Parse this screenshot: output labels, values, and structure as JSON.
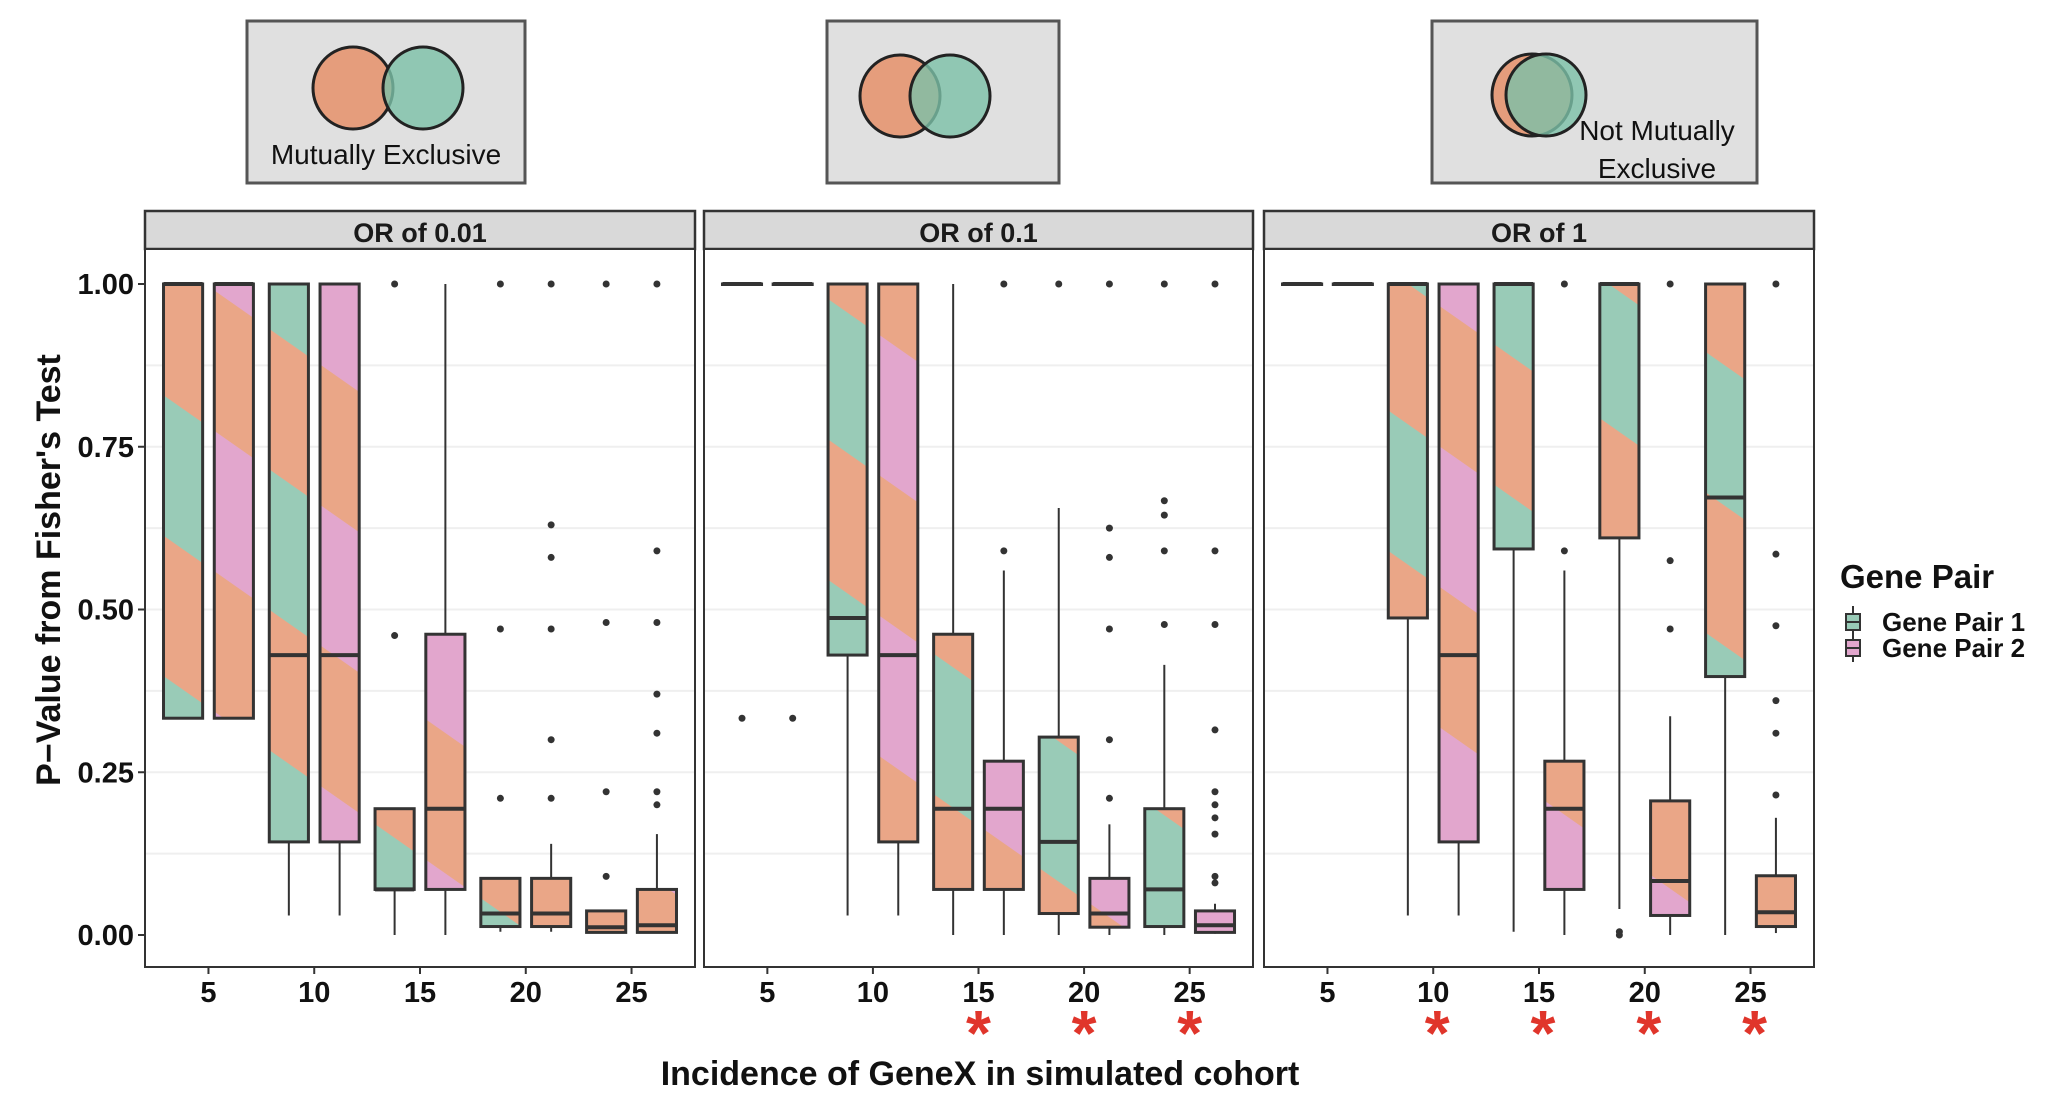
{
  "insets": [
    {
      "lines": [
        "Mutually Exclusive"
      ],
      "overlap": "none"
    },
    {
      "lines": [],
      "overlap": "partial"
    },
    {
      "lines": [
        "Not Mutually",
        "Exclusive"
      ],
      "overlap": "nearly-full"
    }
  ],
  "chart_data": {
    "type": "boxplot",
    "ylabel": "P−Value from Fisher's Test",
    "xlabel": "Incidence of GeneX in simulated cohort",
    "categories": [
      "5",
      "10",
      "15",
      "20",
      "25"
    ],
    "ylim": [
      0,
      1
    ],
    "yticks": [
      "0.00",
      "0.25",
      "0.50",
      "0.75",
      "1.00"
    ],
    "grid": true,
    "significance_marker": "*",
    "legend": {
      "title": "Gene Pair",
      "position": "right",
      "entries": [
        "Gene Pair 1",
        "Gene Pair 2"
      ]
    },
    "colors": {
      "gene_pair_1": "#99cbb7",
      "gene_pair_2": "#e2a6cd",
      "stripe": "#eaa687",
      "marker": "#e0352b",
      "strip": "#d9d9d9",
      "inset_bg": "#e0e0e0"
    },
    "panels": [
      {
        "title": "OR of  0.01",
        "significant": [],
        "series": [
          {
            "name": "Gene Pair 1",
            "boxes": [
              {
                "lw": 0.333,
                "q1": 0.333,
                "med": 1,
                "q3": 1,
                "uw": 1,
                "out": []
              },
              {
                "lw": 0.03,
                "q1": 0.143,
                "med": 0.43,
                "q3": 1,
                "uw": 1,
                "out": []
              },
              {
                "lw": 0,
                "q1": 0.07,
                "med": 0.07,
                "q3": 0.194,
                "uw": 0.194,
                "out": [
                  1,
                  0.46
                ]
              },
              {
                "lw": 0.005,
                "q1": 0.013,
                "med": 0.033,
                "q3": 0.087,
                "uw": 0.087,
                "out": [
                  1,
                  0.47,
                  0.21
                ]
              },
              {
                "lw": 0.003,
                "q1": 0.004,
                "med": 0.012,
                "q3": 0.037,
                "uw": 0.037,
                "out": [
                  1,
                  0.48,
                  0.22,
                  0.09
                ]
              }
            ]
          },
          {
            "name": "Gene Pair 2",
            "boxes": [
              {
                "lw": 0.333,
                "q1": 0.333,
                "med": 1,
                "q3": 1,
                "uw": 1,
                "out": []
              },
              {
                "lw": 0.03,
                "q1": 0.143,
                "med": 0.43,
                "q3": 1,
                "uw": 1,
                "out": []
              },
              {
                "lw": 0,
                "q1": 0.07,
                "med": 0.194,
                "q3": 0.462,
                "uw": 1,
                "out": []
              },
              {
                "lw": 0.005,
                "q1": 0.013,
                "med": 0.033,
                "q3": 0.087,
                "uw": 0.14,
                "out": [
                  1,
                  0.63,
                  0.58,
                  0.47,
                  0.3,
                  0.21
                ]
              },
              {
                "lw": 0.003,
                "q1": 0.004,
                "med": 0.015,
                "q3": 0.07,
                "uw": 0.155,
                "out": [
                  1,
                  0.59,
                  0.48,
                  0.37,
                  0.31,
                  0.22,
                  0.2
                ]
              }
            ]
          }
        ]
      },
      {
        "title": "OR of  0.1",
        "significant": [
          "15",
          "20",
          "25"
        ],
        "series": [
          {
            "name": "Gene Pair 1",
            "boxes": [
              {
                "lw": 1,
                "q1": 1,
                "med": 1,
                "q3": 1,
                "uw": 1,
                "out": [
                  0.333
                ]
              },
              {
                "lw": 0.03,
                "q1": 0.43,
                "med": 0.487,
                "q3": 1,
                "uw": 1,
                "out": []
              },
              {
                "lw": 0,
                "q1": 0.07,
                "med": 0.194,
                "q3": 0.462,
                "uw": 1,
                "out": []
              },
              {
                "lw": 0,
                "q1": 0.033,
                "med": 0.143,
                "q3": 0.304,
                "uw": 0.656,
                "out": [
                  1
                ]
              },
              {
                "lw": 0,
                "q1": 0.013,
                "med": 0.07,
                "q3": 0.194,
                "uw": 0.415,
                "out": [
                  1,
                  0.667,
                  0.645,
                  0.59,
                  0.477
                ]
              }
            ]
          },
          {
            "name": "Gene Pair 2",
            "boxes": [
              {
                "lw": 1,
                "q1": 1,
                "med": 1,
                "q3": 1,
                "uw": 1,
                "out": [
                  0.333
                ]
              },
              {
                "lw": 0.03,
                "q1": 0.143,
                "med": 0.43,
                "q3": 1,
                "uw": 1,
                "out": []
              },
              {
                "lw": 0,
                "q1": 0.07,
                "med": 0.194,
                "q3": 0.267,
                "uw": 0.56,
                "out": [
                  1,
                  0.59
                ]
              },
              {
                "lw": 0,
                "q1": 0.012,
                "med": 0.033,
                "q3": 0.087,
                "uw": 0.17,
                "out": [
                  1,
                  0.625,
                  0.58,
                  0.47,
                  0.3,
                  0.21
                ]
              },
              {
                "lw": 0.002,
                "q1": 0.004,
                "med": 0.015,
                "q3": 0.037,
                "uw": 0.048,
                "out": [
                  1,
                  0.59,
                  0.477,
                  0.315,
                  0.22,
                  0.2,
                  0.18,
                  0.155,
                  0.09,
                  0.08
                ]
              }
            ]
          }
        ]
      },
      {
        "title": "OR of  1",
        "significant": [
          "10",
          "15",
          "20",
          "25"
        ],
        "series": [
          {
            "name": "Gene Pair 1",
            "boxes": [
              {
                "lw": 1,
                "q1": 1,
                "med": 1,
                "q3": 1,
                "uw": 1,
                "out": []
              },
              {
                "lw": 0.03,
                "q1": 0.487,
                "med": 1,
                "q3": 1,
                "uw": 1,
                "out": []
              },
              {
                "lw": 0.005,
                "q1": 0.593,
                "med": 1,
                "q3": 1,
                "uw": 1,
                "out": []
              },
              {
                "lw": 0.04,
                "q1": 0.61,
                "med": 1,
                "q3": 1,
                "uw": 1,
                "out": [
                  0.005,
                  0
                ]
              },
              {
                "lw": 0,
                "q1": 0.397,
                "med": 0.672,
                "q3": 1,
                "uw": 1,
                "out": []
              }
            ]
          },
          {
            "name": "Gene Pair 2",
            "boxes": [
              {
                "lw": 1,
                "q1": 1,
                "med": 1,
                "q3": 1,
                "uw": 1,
                "out": []
              },
              {
                "lw": 0.03,
                "q1": 0.143,
                "med": 0.43,
                "q3": 1,
                "uw": 1,
                "out": []
              },
              {
                "lw": 0,
                "q1": 0.07,
                "med": 0.194,
                "q3": 0.267,
                "uw": 0.56,
                "out": [
                  1,
                  0.59
                ]
              },
              {
                "lw": 0,
                "q1": 0.03,
                "med": 0.083,
                "q3": 0.206,
                "uw": 0.336,
                "out": [
                  1,
                  0.575,
                  0.47
                ]
              },
              {
                "lw": 0.003,
                "q1": 0.013,
                "med": 0.035,
                "q3": 0.091,
                "uw": 0.18,
                "out": [
                  1,
                  0.585,
                  0.475,
                  0.36,
                  0.31,
                  0.215
                ]
              }
            ]
          }
        ]
      }
    ]
  }
}
